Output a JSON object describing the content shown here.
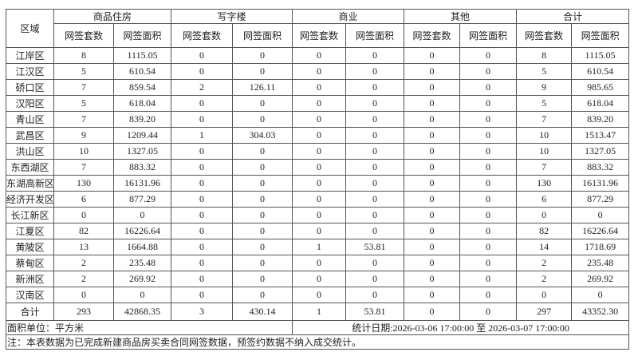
{
  "header": {
    "region": "区域",
    "groups": [
      "商品住房",
      "写字楼",
      "商业",
      "其他",
      "合计"
    ],
    "count_label": "网签套数",
    "area_label": "网签面积"
  },
  "rows": [
    {
      "region": "江岸区",
      "v": [
        "8",
        "1115.05",
        "0",
        "0",
        "0",
        "0",
        "0",
        "0",
        "8",
        "1115.05"
      ]
    },
    {
      "region": "江汉区",
      "v": [
        "5",
        "610.54",
        "0",
        "0",
        "0",
        "0",
        "0",
        "0",
        "5",
        "610.54"
      ]
    },
    {
      "region": "硚口区",
      "v": [
        "7",
        "859.54",
        "2",
        "126.11",
        "0",
        "0",
        "0",
        "0",
        "9",
        "985.65"
      ]
    },
    {
      "region": "汉阳区",
      "v": [
        "5",
        "618.04",
        "0",
        "0",
        "0",
        "0",
        "0",
        "0",
        "5",
        "618.04"
      ]
    },
    {
      "region": "青山区",
      "v": [
        "7",
        "839.20",
        "0",
        "0",
        "0",
        "0",
        "0",
        "0",
        "7",
        "839.20"
      ]
    },
    {
      "region": "武昌区",
      "v": [
        "9",
        "1209.44",
        "1",
        "304.03",
        "0",
        "0",
        "0",
        "0",
        "10",
        "1513.47"
      ]
    },
    {
      "region": "洪山区",
      "v": [
        "10",
        "1327.05",
        "0",
        "0",
        "0",
        "0",
        "0",
        "0",
        "10",
        "1327.05"
      ]
    },
    {
      "region": "东西湖区",
      "v": [
        "7",
        "883.32",
        "0",
        "0",
        "0",
        "0",
        "0",
        "0",
        "7",
        "883.32"
      ]
    },
    {
      "region": "东湖高新区",
      "v": [
        "130",
        "16131.96",
        "0",
        "0",
        "0",
        "0",
        "0",
        "0",
        "130",
        "16131.96"
      ]
    },
    {
      "region": "经济开发区",
      "v": [
        "6",
        "877.29",
        "0",
        "0",
        "0",
        "0",
        "0",
        "0",
        "6",
        "877.29"
      ]
    },
    {
      "region": "长江新区",
      "v": [
        "0",
        "0",
        "0",
        "0",
        "0",
        "0",
        "0",
        "0",
        "0",
        "0"
      ]
    },
    {
      "region": "江夏区",
      "v": [
        "82",
        "16226.64",
        "0",
        "0",
        "0",
        "0",
        "0",
        "0",
        "82",
        "16226.64"
      ]
    },
    {
      "region": "黄陂区",
      "v": [
        "13",
        "1664.88",
        "0",
        "0",
        "1",
        "53.81",
        "0",
        "0",
        "14",
        "1718.69"
      ]
    },
    {
      "region": "蔡甸区",
      "v": [
        "2",
        "235.48",
        "0",
        "0",
        "0",
        "0",
        "0",
        "0",
        "2",
        "235.48"
      ]
    },
    {
      "region": "新洲区",
      "v": [
        "2",
        "269.92",
        "0",
        "0",
        "0",
        "0",
        "0",
        "0",
        "2",
        "269.92"
      ]
    },
    {
      "region": "汉南区",
      "v": [
        "0",
        "0",
        "0",
        "0",
        "0",
        "0",
        "0",
        "0",
        "0",
        "0"
      ]
    }
  ],
  "total": {
    "region": "合计",
    "v": [
      "293",
      "42868.35",
      "3",
      "430.14",
      "1",
      "53.81",
      "0",
      "0",
      "297",
      "43352.30"
    ]
  },
  "footer": {
    "unit": "面积单位：平方米",
    "period": "统计日期:2026-03-06 17:00:00 至 2026-03-07 17:00:00",
    "note": "注：本表数据为已完成新建商品房买卖合同网签数据，预签约数据不纳入成交统计。"
  }
}
